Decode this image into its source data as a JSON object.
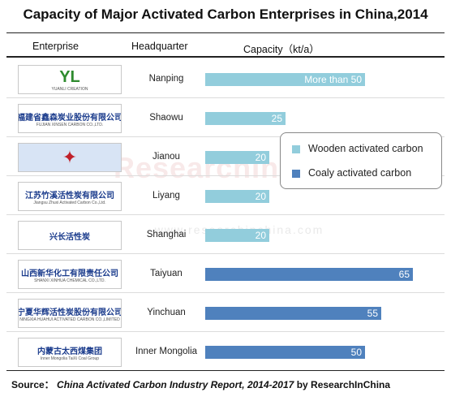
{
  "title": "Capacity of Major Activated Carbon Enterprises in China,2014",
  "headers": {
    "enterprise": "Enterprise",
    "headquarter": "Headquarter",
    "capacity": "Capacity（kt/a）"
  },
  "legend": {
    "wooden": "Wooden activated carbon",
    "coaly": "Coaly activated carbon"
  },
  "colors": {
    "wooden": "#92cddc",
    "coaly": "#4f81bd"
  },
  "logos": [
    {
      "icon": "yl-creation-logo",
      "text": "YL",
      "subtext": "YUANLI CREATION"
    },
    {
      "icon": "xinsen-carbon-logo",
      "text": "福建省鑫森炭业股份有限公司",
      "subtext": "FUJIAN XINSEN CARBON CO.,LTD."
    },
    {
      "icon": "jianou-logo",
      "text": "",
      "subtext": ""
    },
    {
      "icon": "zhuxi-logo",
      "text": "江苏竹溪活性炭有限公司",
      "subtext": "Jiangsu Zhuxi Activated Carbon Co.,Ltd."
    },
    {
      "icon": "xingchang-logo",
      "text": "兴长活性炭",
      "subtext": ""
    },
    {
      "icon": "shanxi-xinhua-logo",
      "text": "山西新华化工有限责任公司",
      "subtext": "SHANXI XINHUA CHEMICAL CO.,LTD."
    },
    {
      "icon": "ningxia-huahui-logo",
      "text": "宁夏华辉活性炭股份有限公司",
      "subtext": "NINGXIA HUAHUI ACTIVATED CARBON CO.,LIMITED"
    },
    {
      "icon": "taixi-coal-logo",
      "text": "内蒙古太西煤集团",
      "subtext": "Inner Mongolia TaiXi Coal Group"
    }
  ],
  "watermark": "ResearchInChina",
  "watermark_url": "www.researchinchina.com",
  "source": {
    "label": "Source：",
    "report": "China Activated Carbon Industry Report, 2014-2017",
    "by": "by ResearchInChina"
  },
  "chart_data": {
    "type": "bar",
    "orientation": "horizontal",
    "categories": [
      "Nanping",
      "Shaowu",
      "Jianou",
      "Liyang",
      "Shanghai",
      "Taiyuan",
      "Yinchuan",
      "Inner Mongolia"
    ],
    "values": [
      50,
      25,
      20,
      20,
      20,
      65,
      55,
      50
    ],
    "data_labels": [
      "More than 50",
      "25",
      "20",
      "20",
      "20",
      "65",
      "55",
      "50"
    ],
    "series_type": [
      "wooden",
      "wooden",
      "wooden",
      "wooden",
      "wooden",
      "coaly",
      "coaly",
      "coaly"
    ],
    "title": "Capacity of Major Activated Carbon Enterprises in China,2014",
    "xlabel": "Capacity（kt/a）",
    "ylabel": "Headquarter",
    "xlim": [
      0,
      70
    ],
    "grid": false,
    "legend_position": "right"
  }
}
